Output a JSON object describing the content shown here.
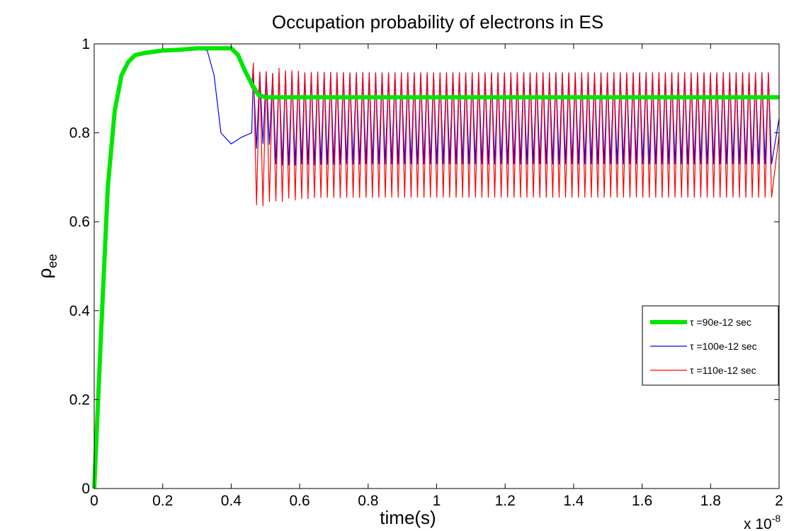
{
  "chart_data": {
    "type": "line",
    "title": "Occupation probability of electrons in ES",
    "xlabel": "time(s)",
    "ylabel_main": "ρ",
    "ylabel_sub": "ee",
    "x_multiplier_base": "x 10",
    "x_multiplier_exp": "-8",
    "xlim": [
      0,
      2
    ],
    "ylim": [
      0,
      1
    ],
    "xticks": [
      0,
      0.2,
      0.4,
      0.6,
      0.8,
      1,
      1.2,
      1.4,
      1.6,
      1.8,
      2
    ],
    "xtick_labels": [
      "0",
      "0.2",
      "0.4",
      "0.6",
      "0.8",
      "1",
      "1.2",
      "1.4",
      "1.6",
      "1.8",
      "2"
    ],
    "yticks": [
      0,
      0.2,
      0.4,
      0.6,
      0.8,
      1
    ],
    "ytick_labels": [
      "0",
      "0.2",
      "0.4",
      "0.6",
      "0.8",
      "1"
    ],
    "grid": false,
    "legend_position": "center-right",
    "series": [
      {
        "name": "τ =90e-12 sec",
        "color": "#00e600",
        "style": "thick",
        "x": [
          0,
          0.02,
          0.04,
          0.06,
          0.08,
          0.1,
          0.12,
          0.15,
          0.2,
          0.25,
          0.3,
          0.4,
          0.42,
          0.44,
          0.46,
          0.48,
          0.5,
          2.0
        ],
        "y": [
          0,
          0.35,
          0.68,
          0.85,
          0.93,
          0.96,
          0.975,
          0.98,
          0.985,
          0.987,
          0.99,
          0.99,
          0.975,
          0.94,
          0.91,
          0.885,
          0.88,
          0.88
        ],
        "steady_min": 0.88,
        "steady_max": 0.88
      },
      {
        "name": "τ =100e-12 sec",
        "color": "#0000ff",
        "style": "thin",
        "x": [
          0,
          0.02,
          0.04,
          0.06,
          0.08,
          0.1,
          0.12,
          0.15,
          0.2,
          0.25,
          0.3,
          0.33,
          0.35,
          0.37,
          0.4,
          0.43,
          0.46
        ],
        "y": [
          0,
          0.35,
          0.68,
          0.85,
          0.93,
          0.96,
          0.975,
          0.98,
          0.985,
          0.987,
          0.99,
          0.985,
          0.93,
          0.8,
          0.775,
          0.79,
          0.8
        ],
        "steady_min": 0.73,
        "steady_max": 0.935
      },
      {
        "name": "τ =110e-12 sec",
        "color": "#ff0000",
        "style": "thin",
        "x": [
          0,
          0.02,
          0.04,
          0.06,
          0.08,
          0.1,
          0.12,
          0.15,
          0.2,
          0.25,
          0.3,
          0.4,
          0.42,
          0.44,
          0.46
        ],
        "y": [
          0,
          0.35,
          0.68,
          0.85,
          0.93,
          0.96,
          0.975,
          0.98,
          0.985,
          0.987,
          0.99,
          0.99,
          0.975,
          0.94,
          0.9
        ],
        "steady_min": 0.655,
        "steady_max": 0.935
      }
    ]
  }
}
